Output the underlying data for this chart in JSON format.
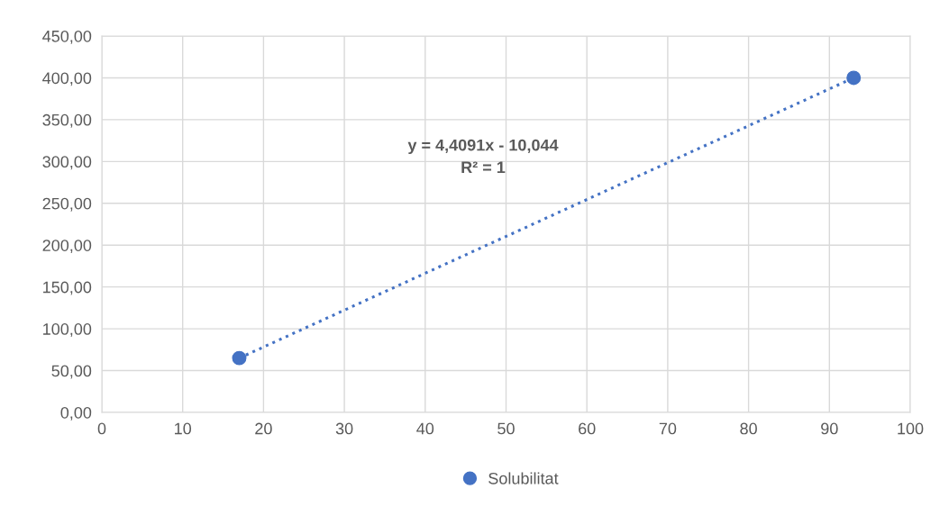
{
  "chart_data": {
    "type": "scatter",
    "series": [
      {
        "name": "Solubilitat",
        "color": "#4472c4",
        "marker": "circle",
        "values": [
          65,
          400
        ]
      },
      {
        "type": "line",
        "color": "#4472c4",
        "line_style": "dotted",
        "values": [
          65,
          400
        ]
      }
    ],
    "annotations": [
      "y = 4,4091x - 10,044",
      "R² = 1"
    ],
    "x": [
      17,
      93
    ],
    "xlim": [
      0,
      100
    ],
    "xticks": [
      0,
      10,
      20,
      30,
      40,
      50,
      60,
      70,
      80,
      90,
      100
    ],
    "ylim": [
      0,
      450
    ],
    "yticks": [
      {
        "value": 0,
        "label": "0,00"
      },
      {
        "value": 50,
        "label": "50,00"
      },
      {
        "value": 100,
        "label": "100,00"
      },
      {
        "value": 150,
        "label": "150,00"
      },
      {
        "value": 200,
        "label": "200,00"
      },
      {
        "value": 250,
        "label": "250,00"
      },
      {
        "value": 300,
        "label": "300,00"
      },
      {
        "value": 350,
        "label": "350,00"
      },
      {
        "value": 400,
        "label": "400,00"
      },
      {
        "value": 450,
        "label": "450,00"
      }
    ],
    "grid": true,
    "legend": "bottom"
  }
}
